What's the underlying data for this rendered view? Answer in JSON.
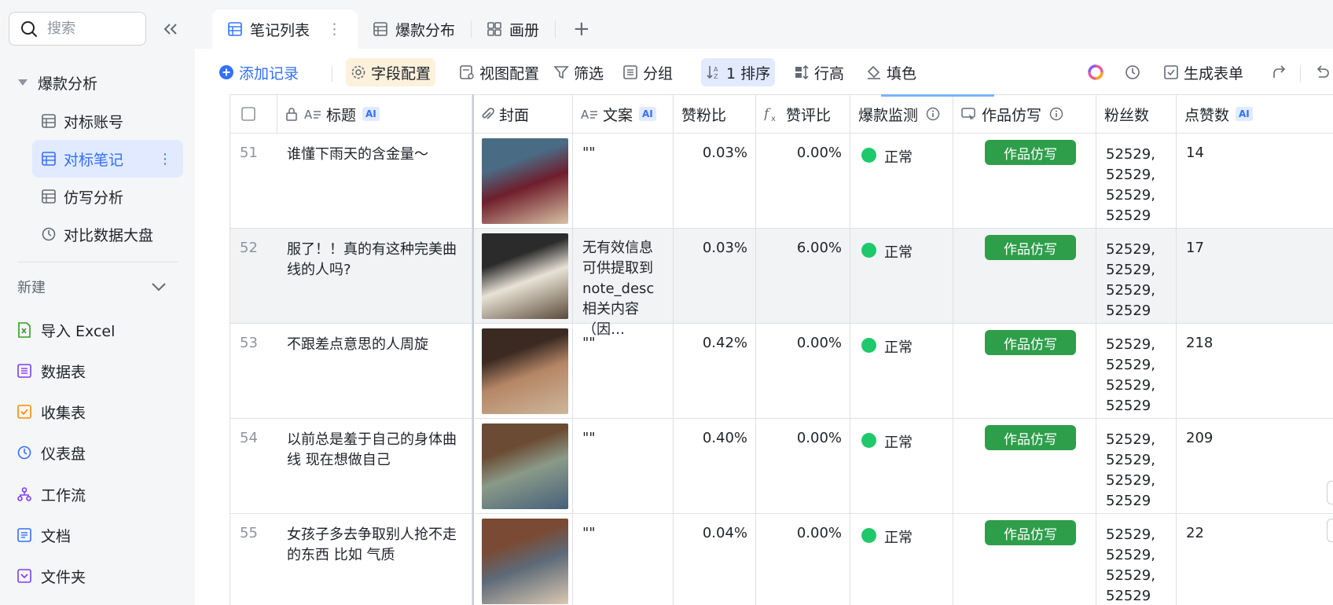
{
  "sidebar": {
    "search_placeholder": "搜索",
    "group_label": "爆款分析",
    "nav_items": [
      {
        "label": "对标账号"
      },
      {
        "label": "对标笔记"
      },
      {
        "label": "仿写分析"
      },
      {
        "label": "对比数据大盘"
      }
    ],
    "new_label": "新建",
    "create_items": [
      {
        "label": "导入 Excel",
        "icon": "excel-icon",
        "color": "#2ea121"
      },
      {
        "label": "数据表",
        "icon": "table-icon",
        "color": "#7f3bf5"
      },
      {
        "label": "收集表",
        "icon": "form-icon",
        "color": "#ff8800"
      },
      {
        "label": "仪表盘",
        "icon": "dashboard-icon",
        "color": "#3370ff"
      },
      {
        "label": "工作流",
        "icon": "workflow-icon",
        "color": "#7f3bf5"
      },
      {
        "label": "文档",
        "icon": "doc-icon",
        "color": "#3370ff"
      },
      {
        "label": "文件夹",
        "icon": "folder-icon",
        "color": "#7f3bf5"
      }
    ]
  },
  "tabs": [
    {
      "label": "笔记列表",
      "icon": "grid-icon"
    },
    {
      "label": "爆款分布",
      "icon": "grid-icon"
    },
    {
      "label": "画册",
      "icon": "gallery-icon"
    }
  ],
  "toolbar": {
    "add_record": "添加记录",
    "field_config": "字段配置",
    "view_config": "视图配置",
    "filter": "筛选",
    "group": "分组",
    "sort": "1 排序",
    "row_height": "行高",
    "fill_color": "填色",
    "generate_form": "生成表单"
  },
  "columns": {
    "title": "标题",
    "cover": "封面",
    "copy": "文案",
    "like_fan_ratio": "赞粉比",
    "like_comment_ratio": "赞评比",
    "hit_monitor": "爆款监测",
    "imitate": "作品仿写",
    "fans": "粉丝数",
    "likes": "点赞数",
    "ai": "AI"
  },
  "rows": [
    {
      "num": "51",
      "title": "谁懂下雨天的含金量～",
      "copy": "\"\"",
      "like_fan": "0.03%",
      "like_comment": "0.00%",
      "status": "正常",
      "button": "作品仿写",
      "fans": "52529,\n52529,\n52529,\n52529",
      "likes": "14",
      "cover_colors": [
        "#4a6b84",
        "#6f1e2c",
        "#d8c2a5"
      ]
    },
    {
      "num": "52",
      "title": "服了！！真的有这种完美曲线的人吗?",
      "copy": "无有效信息可供提取到 note_desc 相关内容（因…",
      "like_fan": "0.03%",
      "like_comment": "6.00%",
      "status": "正常",
      "button": "作品仿写",
      "fans": "52529,\n52529,\n52529,\n52529",
      "likes": "17",
      "cover_colors": [
        "#2b2b2b",
        "#e8e2d6",
        "#5b4a3a"
      ]
    },
    {
      "num": "53",
      "title": "不跟差点意思的人周旋",
      "copy": "\"\"",
      "like_fan": "0.42%",
      "like_comment": "0.00%",
      "status": "正常",
      "button": "作品仿写",
      "fans": "52529,\n52529,\n52529,\n52529",
      "likes": "218",
      "cover_colors": [
        "#3a2a22",
        "#b58666",
        "#cdb79a"
      ]
    },
    {
      "num": "54",
      "title": "以前总是羞于自己的身体曲线 现在想做自己",
      "copy": "\"\"",
      "like_fan": "0.40%",
      "like_comment": "0.00%",
      "status": "正常",
      "button": "作品仿写",
      "fans": "52529,\n52529,\n52529,\n52529",
      "likes": "209",
      "cover_colors": [
        "#6b4b33",
        "#8a9a88",
        "#46607a"
      ]
    },
    {
      "num": "55",
      "title": "女孩子多去争取别人抢不走的东西 比如 气质",
      "copy": "\"\"",
      "like_fan": "0.04%",
      "like_comment": "0.00%",
      "status": "正常",
      "button": "作品仿写",
      "fans": "52529,\n52529,\n52529,\n52529",
      "likes": "22",
      "cover_colors": [
        "#7a4a34",
        "#5d6a78",
        "#d9c8b1"
      ]
    }
  ],
  "colors": {
    "accent": "#3370ff",
    "success": "#1fc96b",
    "button_green": "#2e9e4a"
  }
}
